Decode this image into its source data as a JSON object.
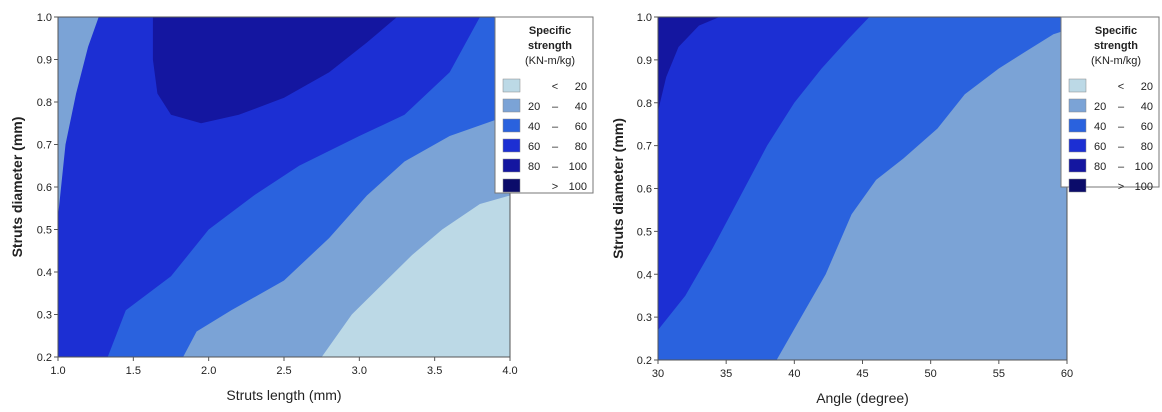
{
  "chart_data": [
    {
      "type": "contour",
      "xlabel": "Struts length (mm)",
      "ylabel": "Struts diameter (mm)",
      "xlim": [
        1.0,
        4.0
      ],
      "ylim": [
        0.2,
        1.0
      ],
      "x_ticks": [
        "1.0",
        "1.5",
        "2.0",
        "2.5",
        "3.0",
        "3.5",
        "4.0"
      ],
      "y_ticks": [
        "0.2",
        "0.3",
        "0.4",
        "0.5",
        "0.6",
        "0.7",
        "0.8",
        "0.9",
        "1.0"
      ],
      "legend": {
        "title": [
          "Specific",
          "strength",
          "(KN-m/kg)"
        ],
        "placement": "top-right",
        "levels": [
          {
            "lo": "",
            "sep": "<",
            "hi": "20",
            "color": "#bcd9e6"
          },
          {
            "lo": "20",
            "sep": "–",
            "hi": "40",
            "color": "#7ba3d6"
          },
          {
            "lo": "40",
            "sep": "–",
            "hi": "60",
            "color": "#2a62de"
          },
          {
            "lo": "60",
            "sep": "–",
            "hi": "80",
            "color": "#1c2fd3"
          },
          {
            "lo": "80",
            "sep": "–",
            "hi": "100",
            "color": "#1416a0"
          },
          {
            "lo": "",
            "sep": ">",
            "hi": "100",
            "color": "#0b0c6a"
          }
        ]
      },
      "regions": [
        {
          "level": "20 – 40",
          "polygon": [
            [
              1.0,
              0.2
            ],
            [
              4.0,
              0.2
            ],
            [
              4.0,
              1.0
            ],
            [
              1.0,
              1.0
            ]
          ]
        },
        {
          "level": "40 – 60",
          "polygon": [
            [
              1.0,
              0.2
            ],
            [
              1.83,
              0.2
            ],
            [
              1.92,
              0.26
            ],
            [
              2.15,
              0.31
            ],
            [
              2.5,
              0.38
            ],
            [
              2.8,
              0.48
            ],
            [
              3.05,
              0.58
            ],
            [
              3.3,
              0.66
            ],
            [
              3.6,
              0.72
            ],
            [
              4.0,
              0.77
            ],
            [
              4.0,
              1.0
            ],
            [
              1.0,
              1.0
            ]
          ]
        },
        {
          "level": "60 – 80",
          "polygon": [
            [
              1.0,
              0.2
            ],
            [
              1.33,
              0.2
            ],
            [
              1.45,
              0.31
            ],
            [
              1.75,
              0.39
            ],
            [
              2.0,
              0.5
            ],
            [
              2.3,
              0.58
            ],
            [
              2.6,
              0.65
            ],
            [
              3.0,
              0.72
            ],
            [
              3.3,
              0.77
            ],
            [
              3.6,
              0.87
            ],
            [
              3.8,
              1.0
            ],
            [
              1.0,
              1.0
            ]
          ]
        },
        {
          "level": "20 – 40",
          "polygon": [
            [
              1.0,
              0.53
            ],
            [
              1.05,
              0.7
            ],
            [
              1.12,
              0.82
            ],
            [
              1.2,
              0.93
            ],
            [
              1.27,
              1.0
            ],
            [
              1.0,
              1.0
            ]
          ]
        },
        {
          "level": "80 – 100",
          "polygon": [
            [
              1.63,
              1.0
            ],
            [
              1.63,
              0.9
            ],
            [
              1.66,
              0.82
            ],
            [
              1.75,
              0.77
            ],
            [
              1.95,
              0.75
            ],
            [
              2.2,
              0.77
            ],
            [
              2.5,
              0.81
            ],
            [
              2.8,
              0.87
            ],
            [
              3.05,
              0.94
            ],
            [
              3.25,
              1.0
            ]
          ]
        },
        {
          "level": "< 20",
          "polygon": [
            [
              2.75,
              0.2
            ],
            [
              4.0,
              0.2
            ],
            [
              4.0,
              0.58
            ],
            [
              3.8,
              0.56
            ],
            [
              3.55,
              0.5
            ],
            [
              3.35,
              0.44
            ],
            [
              3.15,
              0.37
            ],
            [
              2.95,
              0.3
            ]
          ]
        }
      ]
    },
    {
      "type": "contour",
      "xlabel": "Angle (degree)",
      "ylabel": "Struts diameter (mm)",
      "xlim": [
        30,
        60
      ],
      "ylim": [
        0.2,
        1.0
      ],
      "x_ticks": [
        "30",
        "35",
        "40",
        "45",
        "50",
        "55",
        "60"
      ],
      "y_ticks": [
        "0.2",
        "0.3",
        "0.4",
        "0.5",
        "0.6",
        "0.7",
        "0.8",
        "0.9",
        "1.0"
      ],
      "legend": {
        "title": [
          "Specific",
          "strength",
          "(KN-m/kg)"
        ],
        "placement": "top-right",
        "levels": [
          {
            "lo": "",
            "sep": "<",
            "hi": "20",
            "color": "#bcd9e6"
          },
          {
            "lo": "20",
            "sep": "–",
            "hi": "40",
            "color": "#7ba3d6"
          },
          {
            "lo": "40",
            "sep": "–",
            "hi": "60",
            "color": "#2a62de"
          },
          {
            "lo": "60",
            "sep": "–",
            "hi": "80",
            "color": "#1c2fd3"
          },
          {
            "lo": "80",
            "sep": "–",
            "hi": "100",
            "color": "#1416a0"
          },
          {
            "lo": "",
            "sep": ">",
            "hi": "100",
            "color": "#0b0c6a"
          }
        ]
      },
      "regions": [
        {
          "level": "40 – 60",
          "polygon": [
            [
              30,
              0.2
            ],
            [
              60,
              0.2
            ],
            [
              60,
              1.0
            ],
            [
              30,
              1.0
            ]
          ]
        },
        {
          "level": "60 – 80",
          "polygon": [
            [
              30,
              0.27
            ],
            [
              32,
              0.35
            ],
            [
              34,
              0.46
            ],
            [
              36,
              0.58
            ],
            [
              38,
              0.7
            ],
            [
              40,
              0.8
            ],
            [
              42,
              0.88
            ],
            [
              44,
              0.95
            ],
            [
              45.5,
              1.0
            ],
            [
              30,
              1.0
            ]
          ]
        },
        {
          "level": "80 – 100",
          "polygon": [
            [
              30,
              0.78
            ],
            [
              30.6,
              0.86
            ],
            [
              31.5,
              0.93
            ],
            [
              33,
              0.98
            ],
            [
              34.5,
              1.0
            ],
            [
              30,
              1.0
            ]
          ]
        },
        {
          "level": "20 – 40",
          "polygon": [
            [
              38.7,
              0.2
            ],
            [
              40.5,
              0.3
            ],
            [
              42.3,
              0.4
            ],
            [
              44.2,
              0.54
            ],
            [
              46,
              0.62
            ],
            [
              48,
              0.67
            ],
            [
              50.5,
              0.74
            ],
            [
              52.5,
              0.82
            ],
            [
              55,
              0.88
            ],
            [
              57,
              0.92
            ],
            [
              59,
              0.96
            ],
            [
              60,
              0.97
            ],
            [
              60,
              0.2
            ]
          ]
        }
      ]
    }
  ]
}
